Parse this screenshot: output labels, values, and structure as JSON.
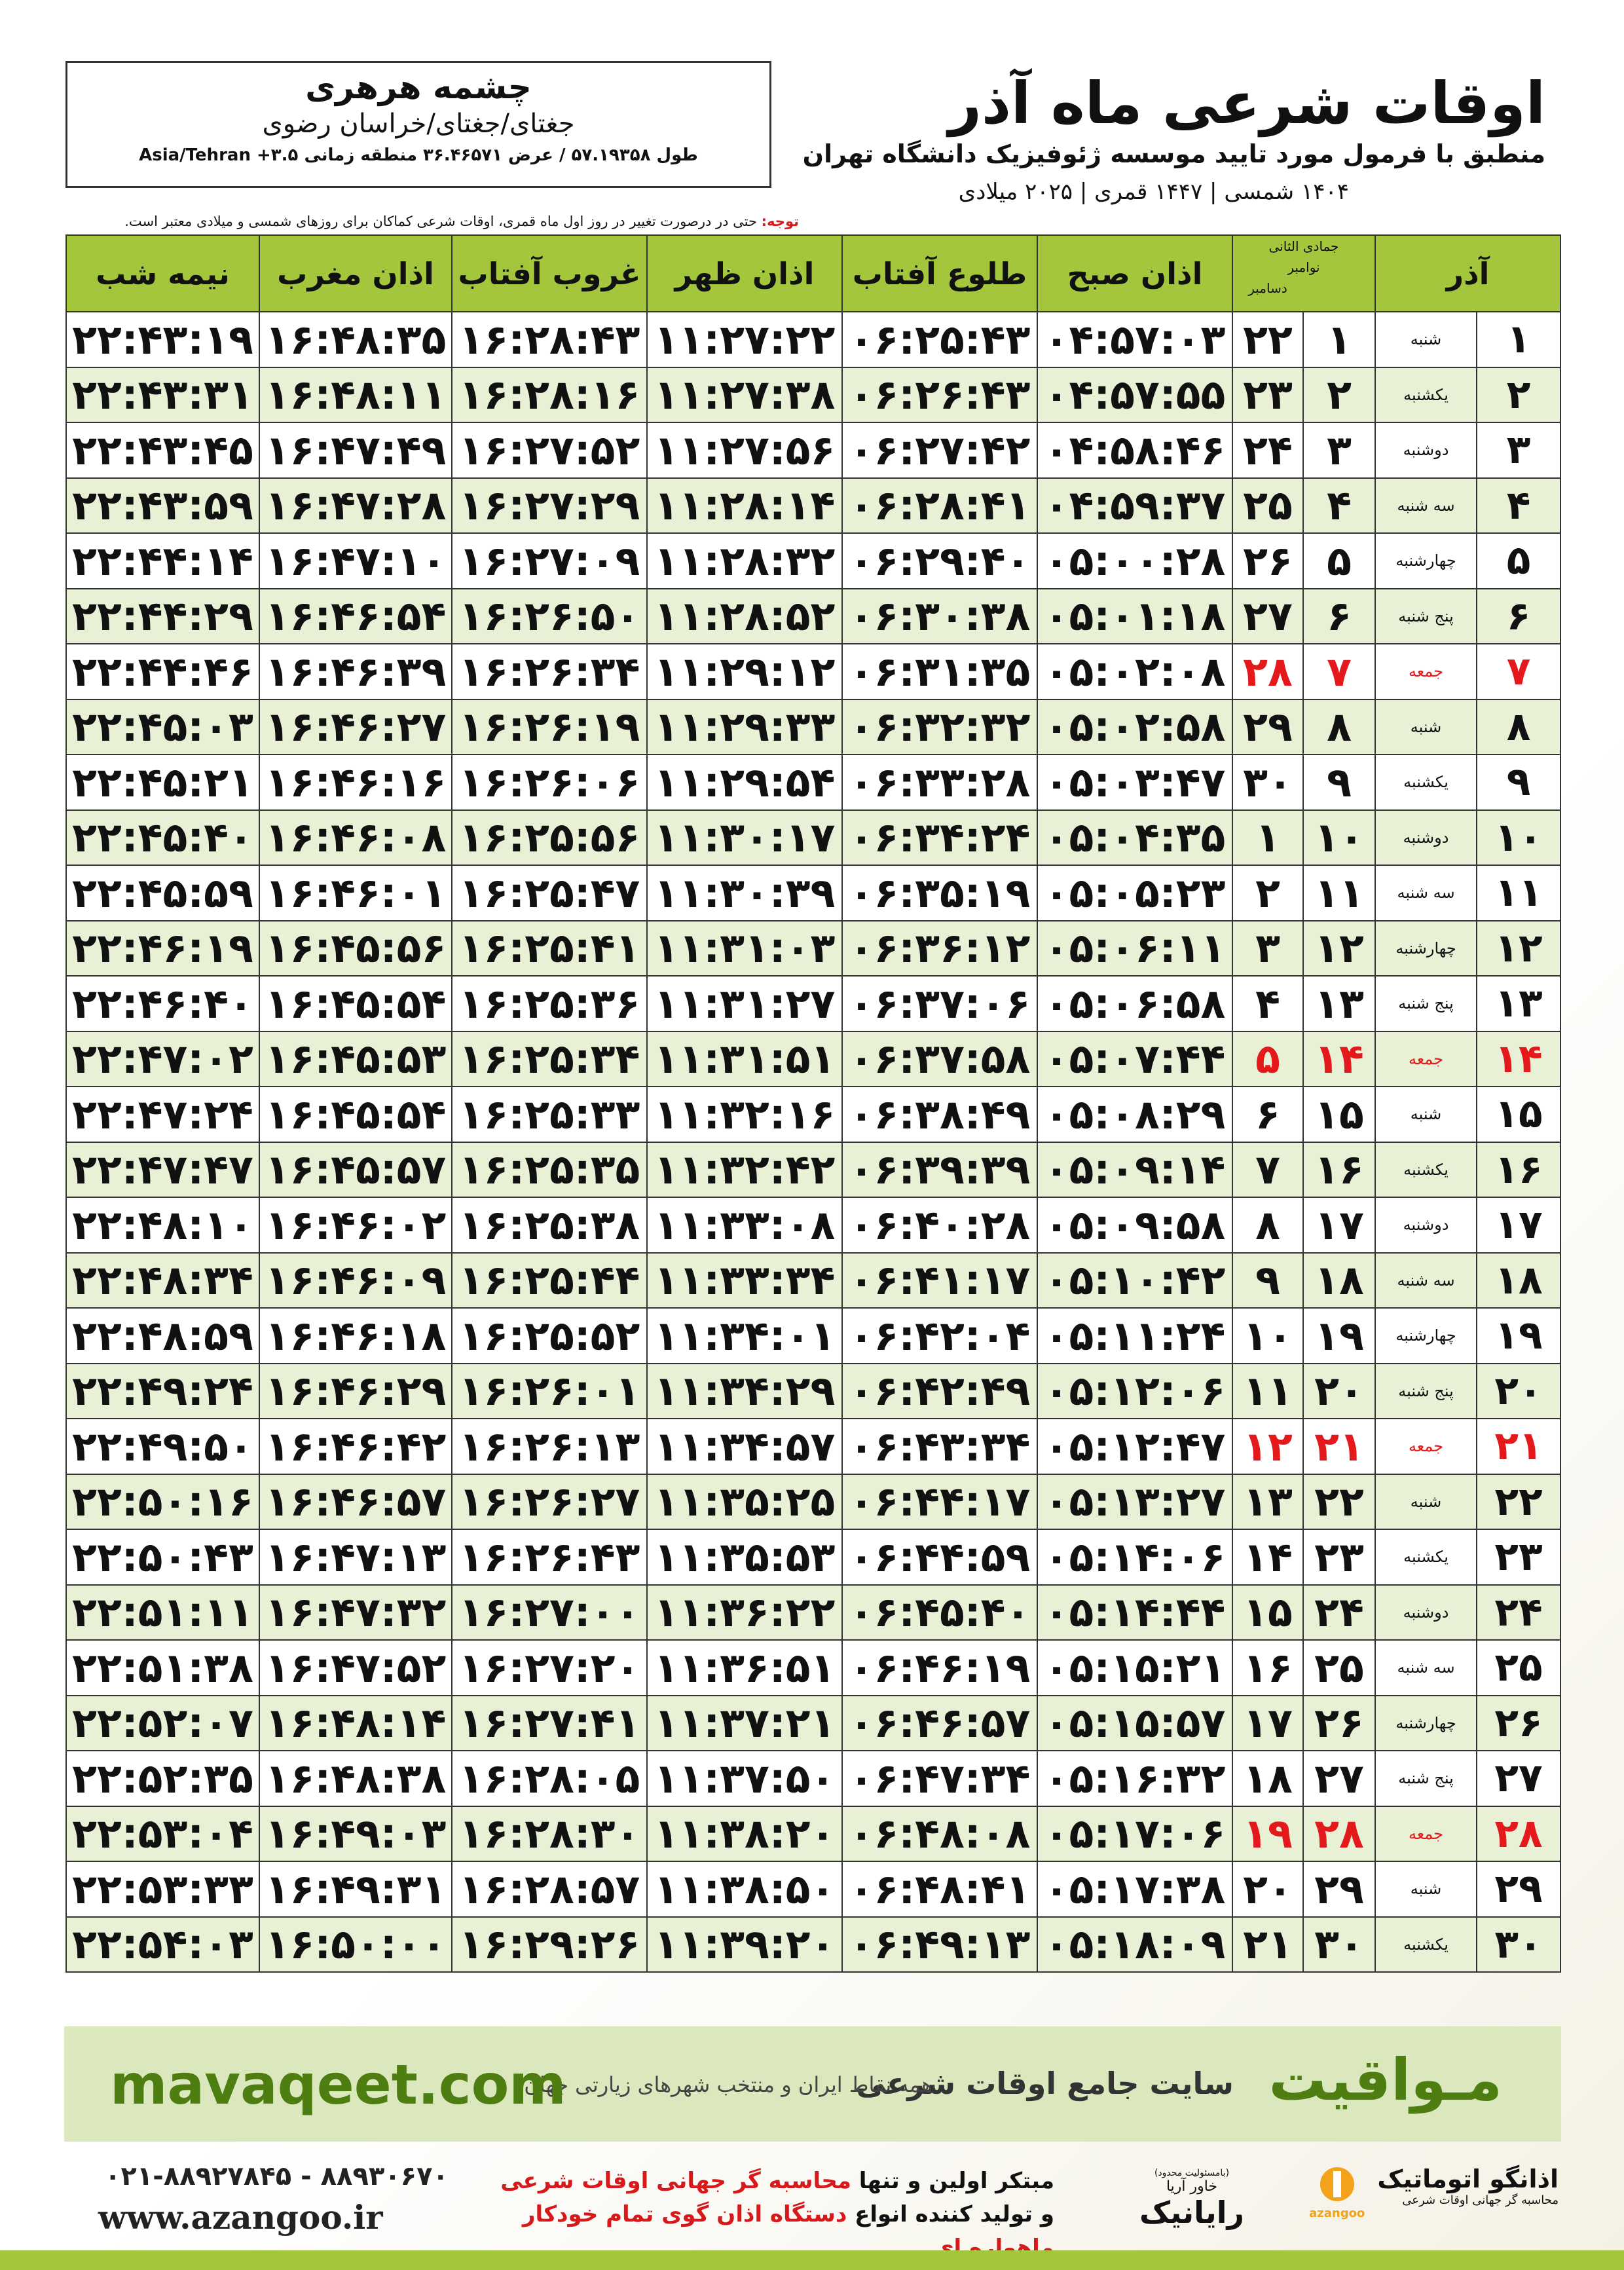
{
  "header": {
    "place": "چشمه هرهری",
    "region": "جغتای/جغتای/خراسان رضوی",
    "coords": "طول ۵۷.۱۹۳۵۸ / عرض ۳۶.۴۶۵۷۱ منطقه زمانی ۳.۵+ Asia/Tehran",
    "title": "اوقات شرعی ماه آذر",
    "subtitle": "منطبق با فرمول مورد تایید موسسه ژئوفیزیک دانشگاه تهران",
    "years": "۱۴۰۴ شمسی | ۱۴۴۷ قمری | ۲۰۲۵ میلادی",
    "note_label": "توجه:",
    "note": "حتی در درصورت تغییر در روز اول ماه قمری، اوقات شرعی کماکان برای روزهای شمسی و میلادی معتبر است."
  },
  "table": {
    "month": "آذر",
    "qamari_month": "جمادی الثانی",
    "gregorian_months": [
      "نوامبر",
      "دسامبر"
    ],
    "times": [
      "اذان صبح",
      "طلوع آفتاب",
      "اذان ظهر",
      "غروب آفتاب",
      "اذان مغرب",
      "نیمه شب"
    ],
    "rows": [
      [
        "۱",
        "شنبه",
        "۱",
        "۲۲",
        "۰۴:۵۷:۰۳",
        "۰۶:۲۵:۴۳",
        "۱۱:۲۷:۲۲",
        "۱۶:۲۸:۴۳",
        "۱۶:۴۸:۳۵",
        "۲۲:۴۳:۱۹"
      ],
      [
        "۲",
        "یکشنبه",
        "۲",
        "۲۳",
        "۰۴:۵۷:۵۵",
        "۰۶:۲۶:۴۳",
        "۱۱:۲۷:۳۸",
        "۱۶:۲۸:۱۶",
        "۱۶:۴۸:۱۱",
        "۲۲:۴۳:۳۱"
      ],
      [
        "۳",
        "دوشنبه",
        "۳",
        "۲۴",
        "۰۴:۵۸:۴۶",
        "۰۶:۲۷:۴۲",
        "۱۱:۲۷:۵۶",
        "۱۶:۲۷:۵۲",
        "۱۶:۴۷:۴۹",
        "۲۲:۴۳:۴۵"
      ],
      [
        "۴",
        "سه شنبه",
        "۴",
        "۲۵",
        "۰۴:۵۹:۳۷",
        "۰۶:۲۸:۴۱",
        "۱۱:۲۸:۱۴",
        "۱۶:۲۷:۲۹",
        "۱۶:۴۷:۲۸",
        "۲۲:۴۳:۵۹"
      ],
      [
        "۵",
        "چهارشنبه",
        "۵",
        "۲۶",
        "۰۵:۰۰:۲۸",
        "۰۶:۲۹:۴۰",
        "۱۱:۲۸:۳۲",
        "۱۶:۲۷:۰۹",
        "۱۶:۴۷:۱۰",
        "۲۲:۴۴:۱۴"
      ],
      [
        "۶",
        "پنج شنبه",
        "۶",
        "۲۷",
        "۰۵:۰۱:۱۸",
        "۰۶:۳۰:۳۸",
        "۱۱:۲۸:۵۲",
        "۱۶:۲۶:۵۰",
        "۱۶:۴۶:۵۴",
        "۲۲:۴۴:۲۹"
      ],
      [
        "۷",
        "جمعه",
        "۷",
        "۲۸",
        "۰۵:۰۲:۰۸",
        "۰۶:۳۱:۳۵",
        "۱۱:۲۹:۱۲",
        "۱۶:۲۶:۳۴",
        "۱۶:۴۶:۳۹",
        "۲۲:۴۴:۴۶"
      ],
      [
        "۸",
        "شنبه",
        "۸",
        "۲۹",
        "۰۵:۰۲:۵۸",
        "۰۶:۳۲:۳۲",
        "۱۱:۲۹:۳۳",
        "۱۶:۲۶:۱۹",
        "۱۶:۴۶:۲۷",
        "۲۲:۴۵:۰۳"
      ],
      [
        "۹",
        "یکشنبه",
        "۹",
        "۳۰",
        "۰۵:۰۳:۴۷",
        "۰۶:۳۳:۲۸",
        "۱۱:۲۹:۵۴",
        "۱۶:۲۶:۰۶",
        "۱۶:۴۶:۱۶",
        "۲۲:۴۵:۲۱"
      ],
      [
        "۱۰",
        "دوشنبه",
        "۱۰",
        "۱",
        "۰۵:۰۴:۳۵",
        "۰۶:۳۴:۲۴",
        "۱۱:۳۰:۱۷",
        "۱۶:۲۵:۵۶",
        "۱۶:۴۶:۰۸",
        "۲۲:۴۵:۴۰"
      ],
      [
        "۱۱",
        "سه شنبه",
        "۱۱",
        "۲",
        "۰۵:۰۵:۲۳",
        "۰۶:۳۵:۱۹",
        "۱۱:۳۰:۳۹",
        "۱۶:۲۵:۴۷",
        "۱۶:۴۶:۰۱",
        "۲۲:۴۵:۵۹"
      ],
      [
        "۱۲",
        "چهارشنبه",
        "۱۲",
        "۳",
        "۰۵:۰۶:۱۱",
        "۰۶:۳۶:۱۲",
        "۱۱:۳۱:۰۳",
        "۱۶:۲۵:۴۱",
        "۱۶:۴۵:۵۶",
        "۲۲:۴۶:۱۹"
      ],
      [
        "۱۳",
        "پنج شنبه",
        "۱۳",
        "۴",
        "۰۵:۰۶:۵۸",
        "۰۶:۳۷:۰۶",
        "۱۱:۳۱:۲۷",
        "۱۶:۲۵:۳۶",
        "۱۶:۴۵:۵۴",
        "۲۲:۴۶:۴۰"
      ],
      [
        "۱۴",
        "جمعه",
        "۱۴",
        "۵",
        "۰۵:۰۷:۴۴",
        "۰۶:۳۷:۵۸",
        "۱۱:۳۱:۵۱",
        "۱۶:۲۵:۳۴",
        "۱۶:۴۵:۵۳",
        "۲۲:۴۷:۰۲"
      ],
      [
        "۱۵",
        "شنبه",
        "۱۵",
        "۶",
        "۰۵:۰۸:۲۹",
        "۰۶:۳۸:۴۹",
        "۱۱:۳۲:۱۶",
        "۱۶:۲۵:۳۳",
        "۱۶:۴۵:۵۴",
        "۲۲:۴۷:۲۴"
      ],
      [
        "۱۶",
        "یکشنبه",
        "۱۶",
        "۷",
        "۰۵:۰۹:۱۴",
        "۰۶:۳۹:۳۹",
        "۱۱:۳۲:۴۲",
        "۱۶:۲۵:۳۵",
        "۱۶:۴۵:۵۷",
        "۲۲:۴۷:۴۷"
      ],
      [
        "۱۷",
        "دوشنبه",
        "۱۷",
        "۸",
        "۰۵:۰۹:۵۸",
        "۰۶:۴۰:۲۸",
        "۱۱:۳۳:۰۸",
        "۱۶:۲۵:۳۸",
        "۱۶:۴۶:۰۲",
        "۲۲:۴۸:۱۰"
      ],
      [
        "۱۸",
        "سه شنبه",
        "۱۸",
        "۹",
        "۰۵:۱۰:۴۲",
        "۰۶:۴۱:۱۷",
        "۱۱:۳۳:۳۴",
        "۱۶:۲۵:۴۴",
        "۱۶:۴۶:۰۹",
        "۲۲:۴۸:۳۴"
      ],
      [
        "۱۹",
        "چهارشنبه",
        "۱۹",
        "۱۰",
        "۰۵:۱۱:۲۴",
        "۰۶:۴۲:۰۴",
        "۱۱:۳۴:۰۱",
        "۱۶:۲۵:۵۲",
        "۱۶:۴۶:۱۸",
        "۲۲:۴۸:۵۹"
      ],
      [
        "۲۰",
        "پنج شنبه",
        "۲۰",
        "۱۱",
        "۰۵:۱۲:۰۶",
        "۰۶:۴۲:۴۹",
        "۱۱:۳۴:۲۹",
        "۱۶:۲۶:۰۱",
        "۱۶:۴۶:۲۹",
        "۲۲:۴۹:۲۴"
      ],
      [
        "۲۱",
        "جمعه",
        "۲۱",
        "۱۲",
        "۰۵:۱۲:۴۷",
        "۰۶:۴۳:۳۴",
        "۱۱:۳۴:۵۷",
        "۱۶:۲۶:۱۳",
        "۱۶:۴۶:۴۲",
        "۲۲:۴۹:۵۰"
      ],
      [
        "۲۲",
        "شنبه",
        "۲۲",
        "۱۳",
        "۰۵:۱۳:۲۷",
        "۰۶:۴۴:۱۷",
        "۱۱:۳۵:۲۵",
        "۱۶:۲۶:۲۷",
        "۱۶:۴۶:۵۷",
        "۲۲:۵۰:۱۶"
      ],
      [
        "۲۳",
        "یکشنبه",
        "۲۳",
        "۱۴",
        "۰۵:۱۴:۰۶",
        "۰۶:۴۴:۵۹",
        "۱۱:۳۵:۵۳",
        "۱۶:۲۶:۴۳",
        "۱۶:۴۷:۱۳",
        "۲۲:۵۰:۴۳"
      ],
      [
        "۲۴",
        "دوشنبه",
        "۲۴",
        "۱۵",
        "۰۵:۱۴:۴۴",
        "۰۶:۴۵:۴۰",
        "۱۱:۳۶:۲۲",
        "۱۶:۲۷:۰۰",
        "۱۶:۴۷:۳۲",
        "۲۲:۵۱:۱۱"
      ],
      [
        "۲۵",
        "سه شنبه",
        "۲۵",
        "۱۶",
        "۰۵:۱۵:۲۱",
        "۰۶:۴۶:۱۹",
        "۱۱:۳۶:۵۱",
        "۱۶:۲۷:۲۰",
        "۱۶:۴۷:۵۲",
        "۲۲:۵۱:۳۸"
      ],
      [
        "۲۶",
        "چهارشنبه",
        "۲۶",
        "۱۷",
        "۰۵:۱۵:۵۷",
        "۰۶:۴۶:۵۷",
        "۱۱:۳۷:۲۱",
        "۱۶:۲۷:۴۱",
        "۱۶:۴۸:۱۴",
        "۲۲:۵۲:۰۷"
      ],
      [
        "۲۷",
        "پنج شنبه",
        "۲۷",
        "۱۸",
        "۰۵:۱۶:۳۲",
        "۰۶:۴۷:۳۴",
        "۱۱:۳۷:۵۰",
        "۱۶:۲۸:۰۵",
        "۱۶:۴۸:۳۸",
        "۲۲:۵۲:۳۵"
      ],
      [
        "۲۸",
        "جمعه",
        "۲۸",
        "۱۹",
        "۰۵:۱۷:۰۶",
        "۰۶:۴۸:۰۸",
        "۱۱:۳۸:۲۰",
        "۱۶:۲۸:۳۰",
        "۱۶:۴۹:۰۳",
        "۲۲:۵۳:۰۴"
      ],
      [
        "۲۹",
        "شنبه",
        "۲۹",
        "۲۰",
        "۰۵:۱۷:۳۸",
        "۰۶:۴۸:۴۱",
        "۱۱:۳۸:۵۰",
        "۱۶:۲۸:۵۷",
        "۱۶:۴۹:۳۱",
        "۲۲:۵۳:۳۳"
      ],
      [
        "۳۰",
        "یکشنبه",
        "۳۰",
        "۲۱",
        "۰۵:۱۸:۰۹",
        "۰۶:۴۹:۱۳",
        "۱۱:۳۹:۲۰",
        "۱۶:۲۹:۲۶",
        "۱۶:۵۰:۰۰",
        "۲۲:۵۴:۰۳"
      ]
    ]
  },
  "banner": {
    "brand": "مـواقیت",
    "slogan": "سایت جامع اوقات شرعی",
    "tagline": "همه نقاط ایران و منتخب شهرهای زیارتی جهان",
    "url": "mavaqeet.com"
  },
  "footer": {
    "phone": "۰۲۱-۸۸۹۲۷۸۴۵ - ۸۸۹۳۰۶۷۰",
    "website": "www.azangoo.ir",
    "line1_a": "مبتکر اولین و تنها",
    "line1_b": "محاسبه گر جهانی اوقات شرعی",
    "line2_a": "و تولید کننده انواع",
    "line2_b": "دستگاه اذان گوی تمام خودکار ماهواره ای",
    "logo1_note": "(بامسئولیت محدود)",
    "logo1_sub": "خاور آریا",
    "logo1": "رایانیک",
    "logo2": "اذانگو اتوماتیک",
    "logo2_sub": "محاسبه گر جهانی اوقات شرعی",
    "logo2_en": "azangoo"
  }
}
